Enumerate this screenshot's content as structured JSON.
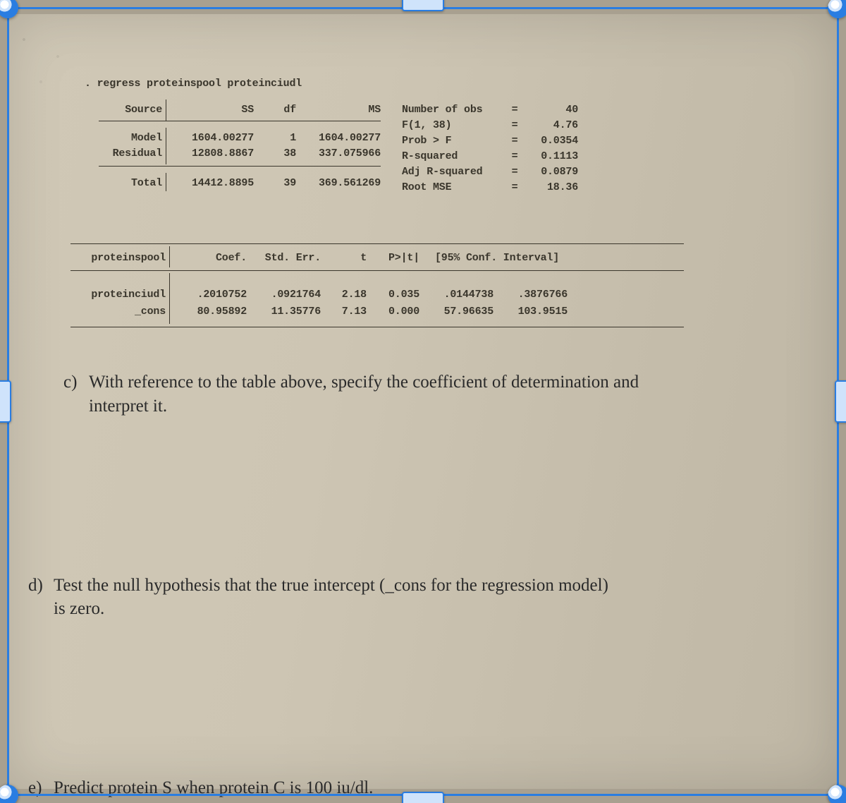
{
  "command": ". regress proteinspool proteinciudl",
  "anova": {
    "headers": {
      "source": "Source",
      "ss": "SS",
      "df": "df",
      "ms": "MS"
    },
    "rows": [
      {
        "source": "Model",
        "ss": "1604.00277",
        "df": "1",
        "ms": "1604.00277"
      },
      {
        "source": "Residual",
        "ss": "12808.8867",
        "df": "38",
        "ms": "337.075966"
      }
    ],
    "total": {
      "source": "Total",
      "ss": "14412.8895",
      "df": "39",
      "ms": "369.561269"
    }
  },
  "stats": [
    {
      "label": "Number of obs",
      "eq": "=",
      "value": "40"
    },
    {
      "label": "F(1, 38)",
      "eq": "=",
      "value": "4.76"
    },
    {
      "label": "Prob > F",
      "eq": "=",
      "value": "0.0354"
    },
    {
      "label": "R-squared",
      "eq": "=",
      "value": "0.1113"
    },
    {
      "label": "Adj R-squared",
      "eq": "=",
      "value": "0.0879"
    },
    {
      "label": "Root MSE",
      "eq": "=",
      "value": "18.36"
    }
  ],
  "coef": {
    "headers": {
      "var": "proteinspool",
      "coef": "Coef.",
      "se": "Std. Err.",
      "t": "t",
      "p": "P>|t|",
      "ci": "[95% Conf. Interval]"
    },
    "rows": [
      {
        "var": "proteinciudl",
        "coef": ".2010752",
        "se": ".0921764",
        "t": "2.18",
        "p": "0.035",
        "lo": ".0144738",
        "hi": ".3876766"
      },
      {
        "var": "_cons",
        "coef": "80.95892",
        "se": "11.35776",
        "t": "7.13",
        "p": "0.000",
        "lo": "57.96635",
        "hi": "103.9515"
      }
    ]
  },
  "questions": {
    "c": {
      "label": "c)",
      "line1": "With reference to the table above, specify the coefficient of determination and",
      "line2": "interpret it."
    },
    "d": {
      "label": "d)",
      "line1": "Test the null hypothesis that the true intercept (_cons for the regression model)",
      "line2": "is zero."
    },
    "e": {
      "label": "e)",
      "line1": "Predict protein S when protein C is 100 iu/dl."
    }
  },
  "colors": {
    "selection_border": "#2a7de1",
    "handle_fill": "#cfe3fb",
    "paper_bg": "#cdc5b3",
    "text": "#3a362c"
  }
}
